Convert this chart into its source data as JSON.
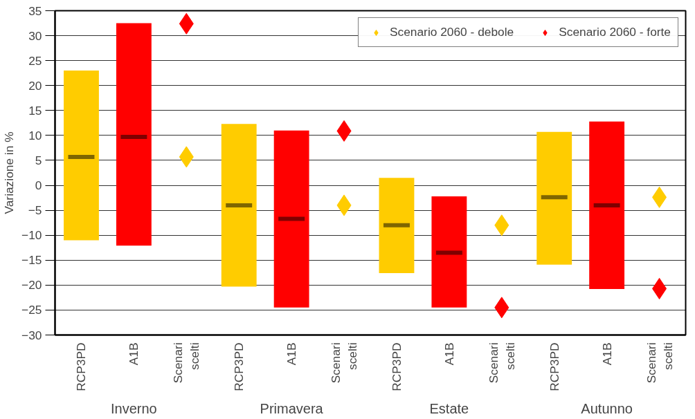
{
  "chart_data": {
    "type": "box",
    "ylabel": "Variazione in %",
    "categories": [
      "RCP3PD",
      "A1B",
      "Scenari scelti",
      "RCP3PD",
      "A1B",
      "Scenari scelti",
      "RCP3PD",
      "A1B",
      "Scenari scelti",
      "RCP3PD",
      "A1B",
      "Scenari scelti"
    ],
    "annotations": [
      "Inverno",
      "Primavera",
      "Estate",
      "Autunno"
    ],
    "ylim": [
      -30,
      35
    ],
    "yticks": [
      -30,
      -25,
      -20,
      -15,
      -10,
      -5,
      0,
      5,
      10,
      15,
      20,
      25,
      30,
      35
    ],
    "grid": "y",
    "legend": "top right",
    "marker": "diamond",
    "series": [
      {
        "color": "#ffcc00",
        "boxes": [
          {
            "low": -11,
            "q1": -11,
            "median": 5.7,
            "q3": 23,
            "high": 23
          },
          null,
          null,
          {
            "low": -20.3,
            "q1": -20.3,
            "median": -4,
            "q3": 12.3,
            "high": 12.3
          },
          null,
          null,
          {
            "low": -17.6,
            "q1": -17.6,
            "median": -8,
            "q3": 1.5,
            "high": 1.5
          },
          null,
          null,
          {
            "low": -15.9,
            "q1": -15.9,
            "median": -2.4,
            "q3": 10.7,
            "high": 10.7
          },
          null,
          null
        ]
      },
      {
        "color": "#ff0000",
        "boxes": [
          null,
          {
            "low": -12.1,
            "q1": -12.1,
            "median": 9.7,
            "q3": 32.5,
            "high": 32.5
          },
          null,
          null,
          {
            "low": -24.5,
            "q1": -24.5,
            "median": -6.7,
            "q3": 11,
            "high": 11
          },
          null,
          null,
          {
            "low": -24.5,
            "q1": -24.5,
            "median": -13.5,
            "q3": -2.2,
            "high": -2.2
          },
          null,
          null,
          {
            "low": -20.8,
            "q1": -20.8,
            "median": -4,
            "q3": 12.8,
            "high": 12.8
          },
          null
        ]
      },
      {
        "type": "scatter",
        "name": "Scenario 2060 - debole",
        "color": "#ffcc00",
        "values": [
          null,
          null,
          5.7,
          null,
          null,
          -4,
          null,
          null,
          -8,
          null,
          null,
          -2.4
        ]
      },
      {
        "type": "scatter",
        "name": "Scenario 2060 - forte",
        "color": "#ff0000",
        "values": [
          null,
          null,
          32.4,
          null,
          null,
          10.9,
          null,
          null,
          -24.5,
          null,
          null,
          -20.7
        ]
      }
    ]
  }
}
